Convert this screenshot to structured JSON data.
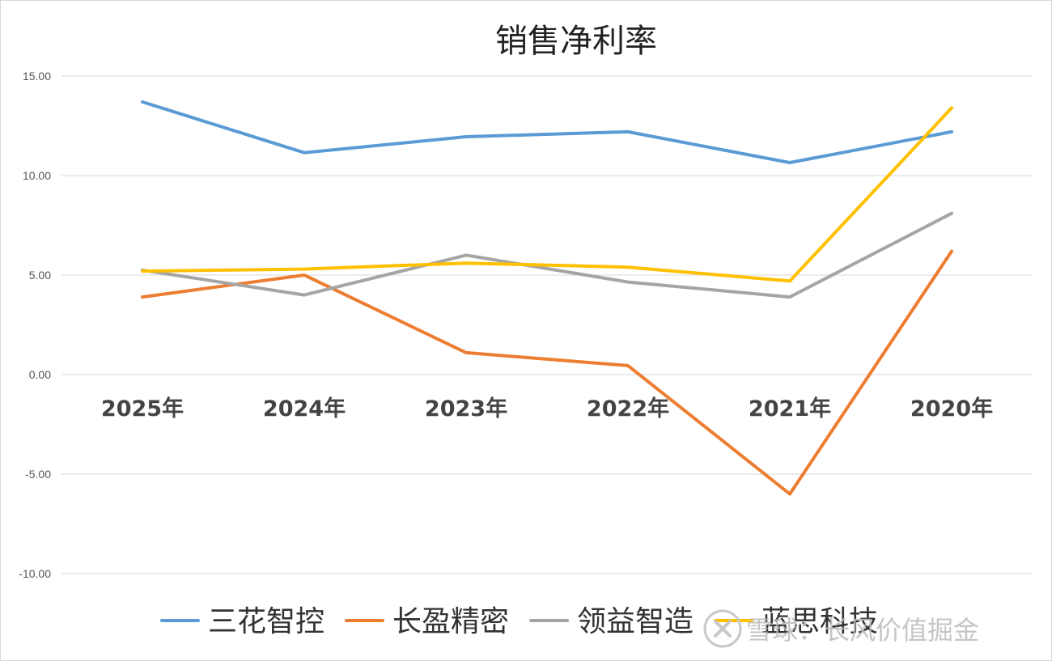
{
  "chart_data": {
    "type": "line",
    "title": "销售净利率",
    "categories": [
      "2025年",
      "2024年",
      "2023年",
      "2022年",
      "2021年",
      "2020年"
    ],
    "ylim": [
      -10,
      15
    ],
    "yticks": [
      15,
      10,
      5,
      0,
      -5,
      -10
    ],
    "ytick_labels": [
      "15.00",
      "10.00",
      "5.00",
      "0.00",
      "-5.00",
      "-10.00"
    ],
    "grid": true,
    "legend_position": "bottom",
    "series": [
      {
        "name": "三花智控",
        "color": "#5b9bd5",
        "values": [
          13.7,
          11.15,
          11.95,
          12.2,
          10.65,
          12.2
        ]
      },
      {
        "name": "长盈精密",
        "color": "#ed7d31",
        "values": [
          3.9,
          5.0,
          1.1,
          0.45,
          -6.0,
          6.2
        ]
      },
      {
        "name": "领益智造",
        "color": "#a5a5a5",
        "values": [
          5.25,
          4.0,
          6.0,
          4.65,
          3.9,
          8.1
        ]
      },
      {
        "name": "蓝思科技",
        "color": "#ffc000",
        "values": [
          5.2,
          5.3,
          5.6,
          5.4,
          4.7,
          13.4
        ]
      }
    ]
  },
  "watermark": {
    "text": "雪球：长风价值掘金"
  }
}
